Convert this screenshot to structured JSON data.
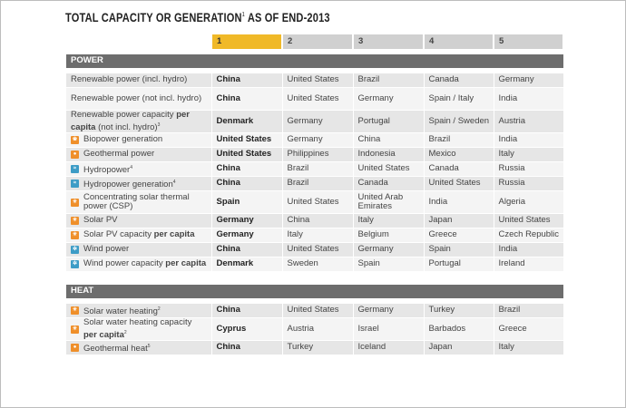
{
  "title": {
    "text": "TOTAL CAPACITY OR GENERATION",
    "sup": "1",
    "suffix": " AS OF END-2013"
  },
  "ranks": [
    "1",
    "2",
    "3",
    "4",
    "5"
  ],
  "sections": [
    {
      "name": "POWER",
      "rows": [
        {
          "label": "Renewable power (incl. hydro)",
          "icon": "",
          "values": [
            "China",
            "United States",
            "Brazil",
            "Canada",
            "Germany"
          ]
        },
        {
          "label": "Renewable power (not incl. hydro)",
          "icon": "",
          "values": [
            "China",
            "United States",
            "Germany",
            "Spain / Italy",
            "India"
          ]
        },
        {
          "label": "Renewable power capacity",
          "label_bold": "per capita",
          "label_rest": " (not incl. hydro)",
          "label_sup": "3",
          "icon": "",
          "values": [
            "Denmark",
            "Germany",
            "Portugal",
            "Spain / Sweden",
            "Austria"
          ]
        },
        {
          "label": "Biopower generation",
          "icon": "biomass-icon",
          "values": [
            "United States",
            "Germany",
            "China",
            "Brazil",
            "India"
          ]
        },
        {
          "label": "Geothermal power",
          "icon": "geothermal-icon",
          "values": [
            "United States",
            "Philippines",
            "Indonesia",
            "Mexico",
            "Italy"
          ]
        },
        {
          "label": "Hydropower",
          "label_sup": "4",
          "icon": "hydropower-icon",
          "values": [
            "China",
            "Brazil",
            "United States",
            "Canada",
            "Russia"
          ]
        },
        {
          "label": "Hydropower generation",
          "label_sup": "4",
          "icon": "hydropower-icon",
          "values": [
            "China",
            "Brazil",
            "Canada",
            "United States",
            "Russia"
          ]
        },
        {
          "label": "Concentrating solar thermal power (CSP)",
          "icon": "solar-icon",
          "values": [
            "Spain",
            "United States",
            "United Arab Emirates",
            "India",
            "Algeria"
          ]
        },
        {
          "label": "Solar PV",
          "icon": "solar-icon",
          "values": [
            "Germany",
            "China",
            "Italy",
            "Japan",
            "United States"
          ]
        },
        {
          "label": "Solar PV capacity",
          "label_bold": "per capita",
          "icon": "solar-icon",
          "values": [
            "Germany",
            "Italy",
            "Belgium",
            "Greece",
            "Czech Republic"
          ]
        },
        {
          "label": "Wind power",
          "icon": "wind-icon",
          "values": [
            "China",
            "United States",
            "Germany",
            "Spain",
            "India"
          ]
        },
        {
          "label": "Wind power capacity",
          "label_bold": "per capita",
          "icon": "wind-icon",
          "values": [
            "Denmark",
            "Sweden",
            "Spain",
            "Portugal",
            "Ireland"
          ]
        }
      ]
    },
    {
      "name": "HEAT",
      "rows": [
        {
          "label": "Solar water heating",
          "label_sup": "2",
          "icon": "solar-icon",
          "values": [
            "China",
            "United States",
            "Germany",
            "Turkey",
            "Brazil"
          ]
        },
        {
          "label": "Solar water heating capacity",
          "label_bold": "per capita",
          "label_sup": "2",
          "icon": "solar-icon",
          "values": [
            "Cyprus",
            "Austria",
            "Israel",
            "Barbados",
            "Greece"
          ]
        },
        {
          "label": "Geothermal heat",
          "label_sup": "5",
          "icon": "geothermal-icon",
          "values": [
            "China",
            "Turkey",
            "Iceland",
            "Japan",
            "Italy"
          ]
        }
      ]
    }
  ],
  "colors": {
    "rank1": "#f0b928",
    "section": "#6d6d6d",
    "icon_orange": "#ef8f2a",
    "icon_teal": "#3d9cc6"
  }
}
